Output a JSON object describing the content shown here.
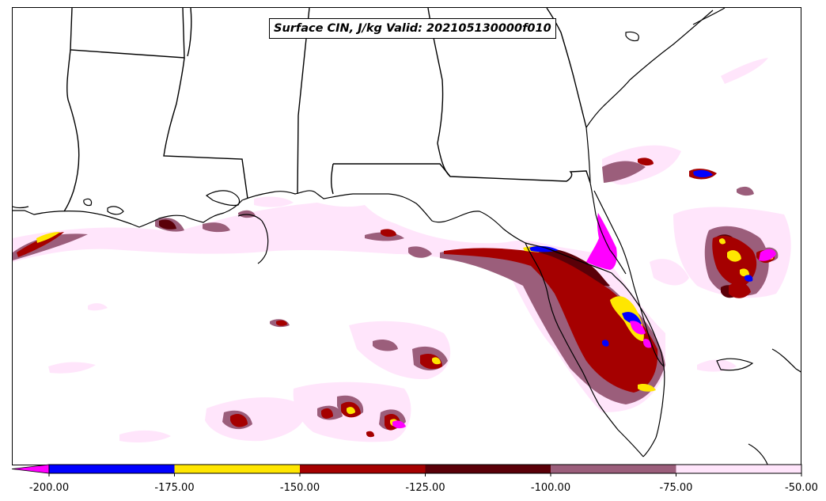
{
  "map": {
    "title": "Surface CIN, J/kg Valid: 202105130000f010",
    "variable": "Surface CIN",
    "units": "J/kg",
    "valid_time": "202105130000f010",
    "region": "Gulf Coast / Florida"
  },
  "colorbar": {
    "extend": "min",
    "extend_color": "#ff00ff",
    "tick_labels": [
      "-200.00",
      "-175.00",
      "-150.00",
      "-125.00",
      "-100.00",
      "-75.00",
      "-50.00"
    ],
    "levels": [
      {
        "from": -200,
        "to": -175,
        "color": "#0000ff"
      },
      {
        "from": -175,
        "to": -150,
        "color": "#ffe600"
      },
      {
        "from": -150,
        "to": -125,
        "color": "#a50000"
      },
      {
        "from": -125,
        "to": -100,
        "color": "#5a0008"
      },
      {
        "from": -100,
        "to": -75,
        "color": "#9b5e7b"
      },
      {
        "from": -75,
        "to": -50,
        "color": "#ffe5fb"
      }
    ]
  }
}
